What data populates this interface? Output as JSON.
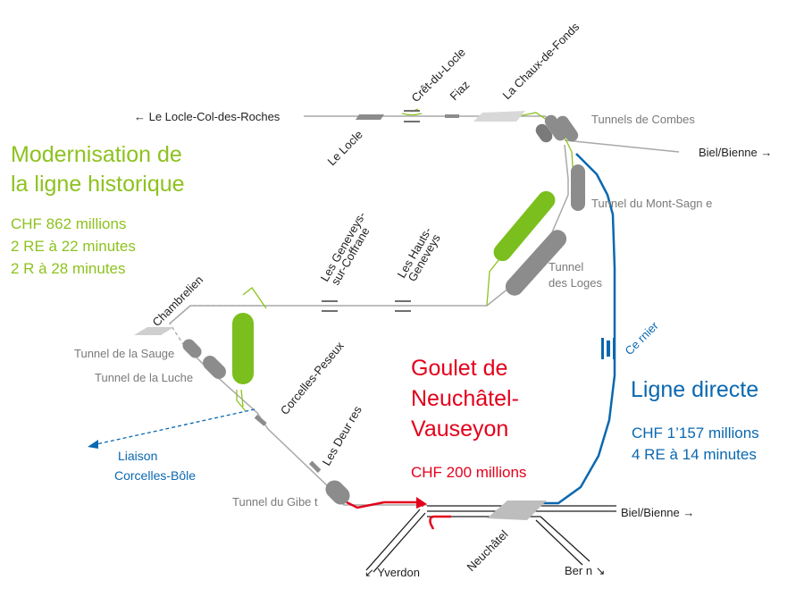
{
  "colors": {
    "green": "#8dc21f",
    "red": "#e3001b",
    "blue": "#0a68b0",
    "track": "#a8a8a8",
    "tunnel": "#8c8c8c"
  },
  "destinations": {
    "le_locle_col": "← Le Locle-Col-des-Roches",
    "biel_top": "Biel/Bienne →",
    "biel_bottom": "Biel/Bienne →",
    "yverdon": "↙ Yverdon",
    "bern": "Ber n ↘"
  },
  "stations": {
    "le_locle": "Le Locle",
    "cret_du_locle": "Crêt-du-Locle",
    "fiaz": "Fiaz",
    "la_chaux_de_fonds": "La Chaux-de-Fonds",
    "les_geneveys_line1": "Les Geneveys-",
    "les_geneveys_line2": "sur-Coffrane",
    "les_hauts_line1": "Les Hauts-",
    "les_hauts_line2": "Geneveys",
    "chambrelien": "Chambrelien",
    "corcelles": "Corcelles-Peseux",
    "les_deurres": "Les Deur res",
    "neuchatel": "Neuchâtel",
    "cernier": "Ce rnier"
  },
  "tunnels": {
    "combes": "Tunnels de Combes",
    "mont_sagne": "Tunnel du Mont-Sagn e",
    "loges_line1": "Tunnel",
    "loges_line2": "des Loges",
    "sauge": "Tunnel de la Sauge",
    "luche": "Tunnel de la Luche",
    "gibet": "Tunnel du Gibe t"
  },
  "links": {
    "liaison_line1": "Liaison",
    "liaison_line2": "Corcelles-Bôle"
  },
  "projects": {
    "historic": {
      "title_line1": "Modernisation de",
      "title_line2": "la ligne historique",
      "cost": "CHF 862 millions",
      "service1": "2 RE à 22 minutes",
      "service2": "2 R à 28 minutes"
    },
    "goulet": {
      "title_line1": "Goulet de",
      "title_line2": "Neuchâtel-",
      "title_line3": "Vauseyon",
      "cost": "CHF 200 millions"
    },
    "direct": {
      "title": "Ligne directe",
      "cost": "CHF 1’157 millions",
      "service": "4 RE à 14 minutes"
    }
  }
}
